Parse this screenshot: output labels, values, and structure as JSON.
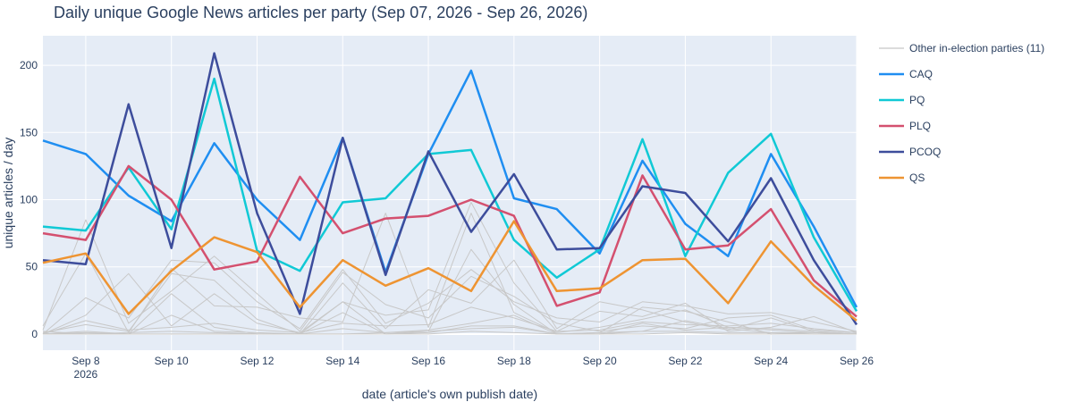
{
  "chart_data": {
    "type": "line",
    "title": "Daily unique Google News articles per party (Sep 07, 2026 - Sep 26, 2026)",
    "xlabel": "date (article's own publish date)",
    "ylabel": "unique articles / day",
    "x_dates": [
      "2026-09-07",
      "2026-09-08",
      "2026-09-09",
      "2026-09-10",
      "2026-09-11",
      "2026-09-12",
      "2026-09-13",
      "2026-09-14",
      "2026-09-15",
      "2026-09-16",
      "2026-09-17",
      "2026-09-18",
      "2026-09-19",
      "2026-09-20",
      "2026-09-21",
      "2026-09-22",
      "2026-09-23",
      "2026-09-24",
      "2026-09-25",
      "2026-09-26"
    ],
    "x_ticks": [
      {
        "date": "2026-09-08",
        "label": "Sep 8",
        "sublabel": "2026"
      },
      {
        "date": "2026-09-10",
        "label": "Sep 10",
        "sublabel": ""
      },
      {
        "date": "2026-09-12",
        "label": "Sep 12",
        "sublabel": ""
      },
      {
        "date": "2026-09-14",
        "label": "Sep 14",
        "sublabel": ""
      },
      {
        "date": "2026-09-16",
        "label": "Sep 16",
        "sublabel": ""
      },
      {
        "date": "2026-09-18",
        "label": "Sep 18",
        "sublabel": ""
      },
      {
        "date": "2026-09-20",
        "label": "Sep 20",
        "sublabel": ""
      },
      {
        "date": "2026-09-22",
        "label": "Sep 22",
        "sublabel": ""
      },
      {
        "date": "2026-09-24",
        "label": "Sep 24",
        "sublabel": ""
      },
      {
        "date": "2026-09-26",
        "label": "Sep 26",
        "sublabel": ""
      }
    ],
    "y_ticks": [
      0,
      50,
      100,
      150,
      200
    ],
    "ylim": [
      -12,
      222
    ],
    "grid": true,
    "legend_position": "right",
    "background_color": "#E5ECF6",
    "series": [
      {
        "name": "CAQ",
        "color": "#1F8EF1",
        "values": [
          144,
          134,
          103,
          84,
          142,
          100,
          70,
          146,
          46,
          134,
          196,
          101,
          93,
          60,
          129,
          82,
          58,
          134,
          80,
          20
        ]
      },
      {
        "name": "PQ",
        "color": "#10C9D5",
        "values": [
          80,
          77,
          124,
          78,
          190,
          62,
          47,
          98,
          101,
          134,
          137,
          70,
          42,
          63,
          145,
          58,
          120,
          149,
          72,
          17
        ]
      },
      {
        "name": "PLQ",
        "color": "#D4506F",
        "values": [
          75,
          70,
          125,
          100,
          48,
          54,
          117,
          75,
          86,
          88,
          100,
          88,
          21,
          31,
          118,
          63,
          66,
          93,
          40,
          13
        ]
      },
      {
        "name": "PCOQ",
        "color": "#3D4D9C",
        "values": [
          55,
          52,
          171,
          64,
          209,
          90,
          15,
          146,
          44,
          136,
          76,
          119,
          63,
          64,
          110,
          105,
          69,
          116,
          55,
          7
        ]
      },
      {
        "name": "QS",
        "color": "#EE9432",
        "values": [
          53,
          60,
          15,
          47,
          72,
          61,
          20,
          55,
          36,
          49,
          32,
          84,
          32,
          34,
          55,
          56,
          23,
          69,
          36,
          10
        ]
      }
    ],
    "other_series": {
      "name": "Other in-election parties (11)",
      "color": "#C8C8C8",
      "lines": [
        [
          0,
          27,
          12,
          55,
          53,
          24,
          4,
          48,
          8,
          23,
          48,
          24,
          12,
          9,
          24,
          21,
          15,
          16,
          9,
          2
        ],
        [
          3,
          85,
          8,
          32,
          58,
          30,
          2,
          46,
          22,
          12,
          43,
          28,
          8,
          2,
          6,
          4,
          12,
          14,
          3,
          1
        ],
        [
          0,
          14,
          45,
          6,
          30,
          8,
          1,
          24,
          14,
          18,
          98,
          38,
          2,
          17,
          13,
          23,
          2,
          5,
          13,
          1
        ],
        [
          1,
          7,
          2,
          45,
          40,
          11,
          0,
          38,
          4,
          33,
          23,
          55,
          4,
          24,
          18,
          9,
          3,
          12,
          2,
          0
        ],
        [
          6,
          60,
          1,
          49,
          21,
          20,
          12,
          9,
          90,
          5,
          90,
          16,
          1,
          5,
          11,
          18,
          5,
          4,
          2,
          0
        ],
        [
          0,
          10,
          3,
          5,
          8,
          3,
          1,
          8,
          6,
          7,
          20,
          12,
          2,
          3,
          9,
          7,
          6,
          8,
          4,
          1
        ],
        [
          0,
          2,
          0,
          30,
          5,
          0,
          0,
          16,
          0,
          2,
          63,
          22,
          0,
          1,
          20,
          17,
          9,
          0,
          1,
          0
        ],
        [
          0,
          0,
          0,
          14,
          2,
          1,
          0,
          0,
          1,
          3,
          8,
          14,
          0,
          0,
          2,
          10,
          4,
          1,
          1,
          0
        ],
        [
          0,
          1,
          0,
          0,
          0,
          0,
          0,
          24,
          0,
          1,
          6,
          6,
          0,
          0,
          8,
          3,
          5,
          3,
          1,
          0
        ],
        [
          0,
          0,
          1,
          2,
          1,
          0,
          0,
          4,
          1,
          2,
          4,
          5,
          0,
          1,
          2,
          2,
          1,
          1,
          0,
          0
        ],
        [
          2,
          0,
          0,
          0,
          0,
          0,
          0,
          0,
          0,
          0,
          2,
          1,
          0,
          0,
          0,
          1,
          0,
          0,
          0,
          0
        ]
      ]
    }
  }
}
